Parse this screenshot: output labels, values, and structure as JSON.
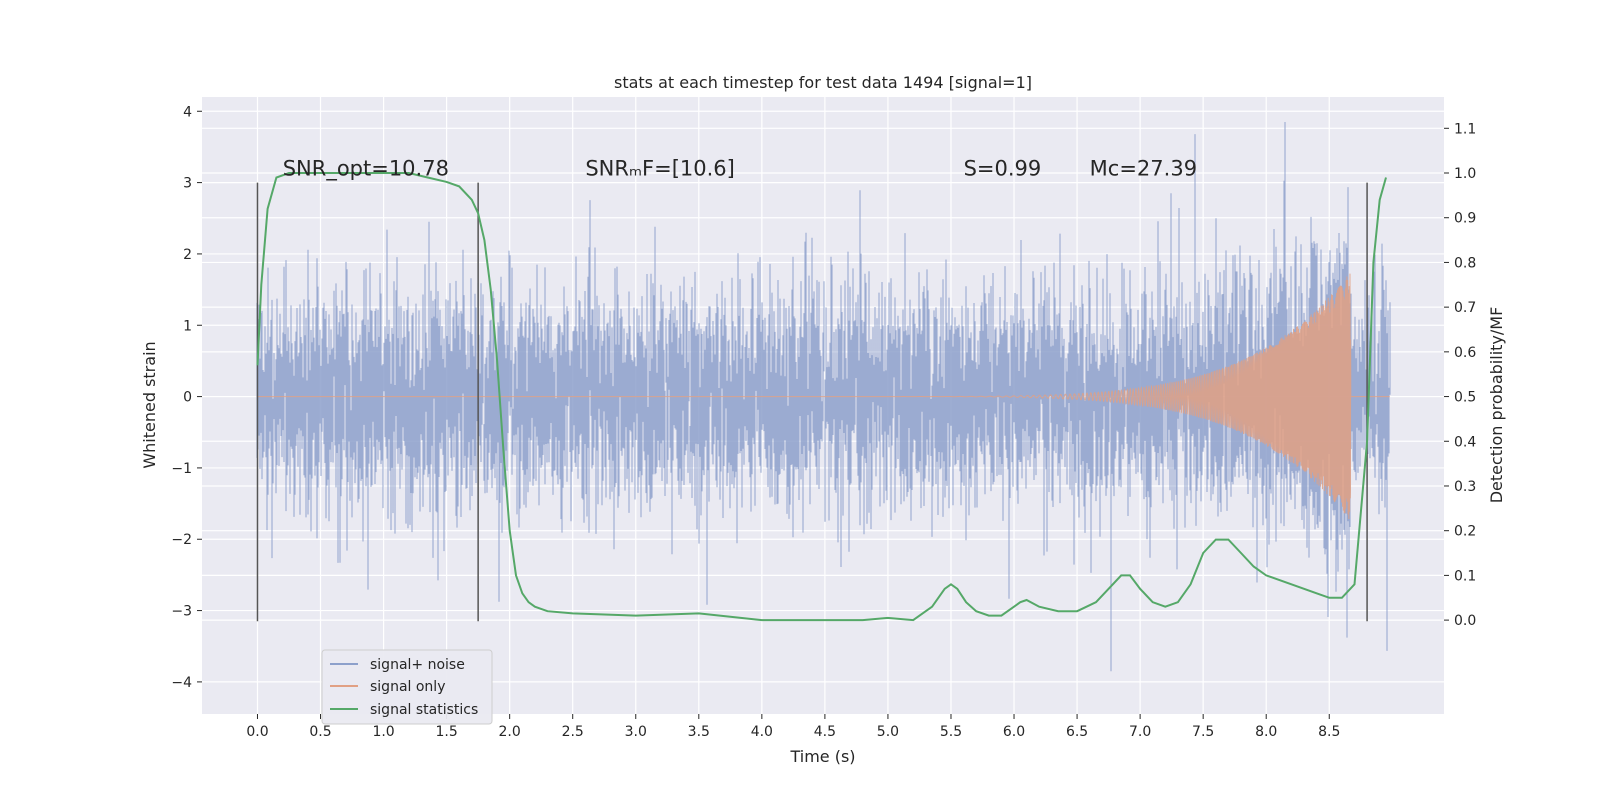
{
  "chart_data": {
    "type": "line",
    "title": "stats at each timestep for test data 1494 [signal=1]",
    "xlabel": "Time (s)",
    "ylabel": "Whitened strain",
    "ylabel_right": "Detection probability/MF",
    "xlim": [
      -0.44,
      9.41
    ],
    "ylim": [
      -4.45,
      4.2
    ],
    "ylim_right": [
      -0.21,
      1.17
    ],
    "x_ticks": [
      0.0,
      0.5,
      1.0,
      1.5,
      2.0,
      2.5,
      3.0,
      3.5,
      4.0,
      4.5,
      5.0,
      5.5,
      6.0,
      6.5,
      7.0,
      7.5,
      8.0,
      8.5
    ],
    "x_tick_labels": [
      "0.0",
      "0.5",
      "1.0",
      "1.5",
      "2.0",
      "2.5",
      "3.0",
      "3.5",
      "4.0",
      "4.5",
      "5.0",
      "5.5",
      "6.0",
      "6.5",
      "7.0",
      "7.5",
      "8.0",
      "8.5"
    ],
    "y_ticks": [
      4,
      3,
      2,
      1,
      0,
      -1,
      -2,
      -3,
      -4
    ],
    "y_tick_labels": [
      "4",
      "3",
      "2",
      "1",
      "0",
      "−1",
      "−2",
      "−3",
      "−4"
    ],
    "y_right_ticks": [
      1.1,
      1.0,
      0.9,
      0.8,
      0.7,
      0.6,
      0.5,
      0.4,
      0.3,
      0.2,
      0.1,
      0.0
    ],
    "y_right_tick_labels": [
      "1.1",
      "1.0",
      "0.9",
      "0.8",
      "0.7",
      "0.6",
      "0.5",
      "0.4",
      "0.3",
      "0.2",
      "0.1",
      "0.0"
    ],
    "grid": true,
    "annotations": [
      {
        "text": "SNR_opt=10.78",
        "x": 0.2,
        "y": 3.1
      },
      {
        "text": "SNRₘF=[10.6]",
        "x": 2.6,
        "y": 3.1
      },
      {
        "text": "S=0.99",
        "x": 5.6,
        "y": 3.1
      },
      {
        "text": "Mᴄ=27.39",
        "x": 6.6,
        "y": 3.1
      }
    ],
    "vertical_markers": [
      0.0,
      1.75,
      8.8
    ],
    "vertical_marker_range": [
      -3.15,
      3.0
    ],
    "noise": {
      "t_start": 0.0,
      "t_end": 8.98,
      "amplitude_sigma": 1.0,
      "peak_extent": 3.85
    },
    "chirp": {
      "t_start": 4.0,
      "t_merger": 8.67,
      "f_start": 10,
      "f_end": 90,
      "peak_amplitude": 1.75
    },
    "legend": {
      "position": "lower-left",
      "entries": [
        "signal+ noise",
        "signal only",
        "signal statistics"
      ]
    },
    "series": [
      {
        "name": "signal+ noise",
        "color": "#8da0cb",
        "axis": "left",
        "kind": "noisy-strain"
      },
      {
        "name": "signal only",
        "color": "#e1a084",
        "axis": "left",
        "kind": "chirp"
      },
      {
        "name": "signal statistics",
        "color": "#55a868",
        "axis": "right",
        "x": [
          0.0,
          0.03,
          0.08,
          0.15,
          0.25,
          0.4,
          0.7,
          1.0,
          1.2,
          1.35,
          1.5,
          1.6,
          1.7,
          1.75,
          1.8,
          1.85,
          1.9,
          1.95,
          2.0,
          2.05,
          2.1,
          2.15,
          2.2,
          2.3,
          2.5,
          3.0,
          3.5,
          4.0,
          4.5,
          4.8,
          5.0,
          5.2,
          5.35,
          5.45,
          5.5,
          5.55,
          5.62,
          5.7,
          5.8,
          5.9,
          6.0,
          6.05,
          6.1,
          6.2,
          6.35,
          6.5,
          6.65,
          6.75,
          6.85,
          6.92,
          7.0,
          7.1,
          7.2,
          7.3,
          7.4,
          7.5,
          7.6,
          7.7,
          7.8,
          7.9,
          8.0,
          8.2,
          8.4,
          8.5,
          8.6,
          8.7,
          8.8,
          8.85,
          8.9,
          8.95
        ],
        "values": [
          0.57,
          0.75,
          0.92,
          0.99,
          1.0,
          1.0,
          1.0,
          1.0,
          1.0,
          0.99,
          0.98,
          0.97,
          0.94,
          0.91,
          0.85,
          0.74,
          0.58,
          0.38,
          0.2,
          0.1,
          0.06,
          0.04,
          0.03,
          0.02,
          0.015,
          0.01,
          0.015,
          0.0,
          0.0,
          0.0,
          0.005,
          0.0,
          0.03,
          0.07,
          0.08,
          0.07,
          0.04,
          0.02,
          0.01,
          0.01,
          0.03,
          0.04,
          0.045,
          0.03,
          0.02,
          0.02,
          0.04,
          0.07,
          0.1,
          0.1,
          0.07,
          0.04,
          0.03,
          0.04,
          0.08,
          0.15,
          0.18,
          0.18,
          0.15,
          0.12,
          0.1,
          0.08,
          0.06,
          0.05,
          0.05,
          0.08,
          0.4,
          0.8,
          0.94,
          0.99
        ]
      }
    ]
  }
}
